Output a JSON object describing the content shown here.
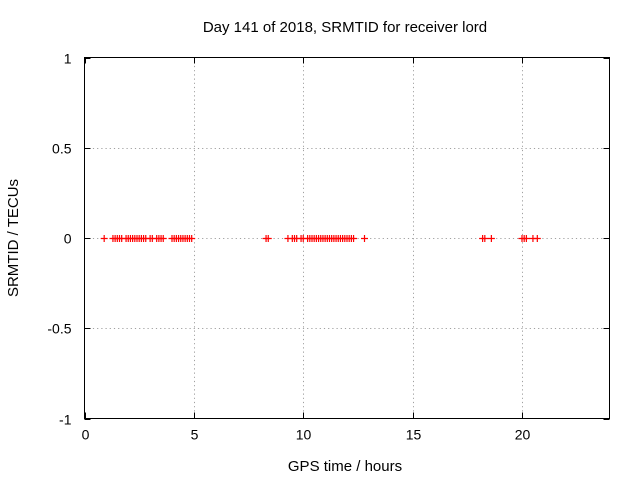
{
  "chart_data": {
    "type": "scatter",
    "title": "Day 141 of 2018, SRMTID for receiver lord",
    "xlabel": "GPS time / hours",
    "ylabel": "SRMTID / TECUs",
    "xlim": [
      0,
      24
    ],
    "ylim": [
      -1,
      1
    ],
    "xticks": [
      0,
      5,
      10,
      15,
      20
    ],
    "yticks": [
      -1,
      -0.5,
      0,
      0.5,
      1
    ],
    "xtick_labels": [
      "0",
      "5",
      "10",
      "15",
      "20"
    ],
    "ytick_labels": [
      "-1",
      "-0.5",
      "0",
      "0.5",
      "1"
    ],
    "grid": true,
    "marker": "plus",
    "series": [
      {
        "name": "SRMTID",
        "color": "#ff0000",
        "x": [
          0.9,
          1.3,
          1.4,
          1.5,
          1.6,
          1.7,
          1.9,
          2.0,
          2.1,
          2.2,
          2.3,
          2.4,
          2.5,
          2.6,
          2.7,
          2.8,
          3.0,
          3.1,
          3.3,
          3.4,
          3.5,
          3.6,
          4.0,
          4.1,
          4.2,
          4.3,
          4.4,
          4.5,
          4.6,
          4.7,
          4.8,
          4.9,
          8.3,
          8.4,
          9.3,
          9.5,
          9.6,
          9.7,
          9.9,
          10.0,
          10.2,
          10.3,
          10.4,
          10.5,
          10.6,
          10.7,
          10.8,
          10.9,
          11.0,
          11.1,
          11.2,
          11.3,
          11.4,
          11.5,
          11.6,
          11.7,
          11.8,
          11.9,
          12.0,
          12.1,
          12.2,
          12.3,
          12.8,
          18.2,
          18.3,
          18.6,
          20.0,
          20.1,
          20.2,
          20.5,
          20.7
        ],
        "y": [
          0,
          0,
          0,
          0,
          0,
          0,
          0,
          0,
          0,
          0,
          0,
          0,
          0,
          0,
          0,
          0,
          0,
          0,
          0,
          0,
          0,
          0,
          0,
          0,
          0,
          0,
          0,
          0,
          0,
          0,
          0,
          0,
          0,
          0,
          0,
          0,
          0,
          0,
          0,
          0,
          0,
          0,
          0,
          0,
          0,
          0,
          0,
          0,
          0,
          0,
          0,
          0,
          0,
          0,
          0,
          0,
          0,
          0,
          0,
          0,
          0,
          0,
          0,
          0,
          0,
          0,
          0,
          0,
          0,
          0,
          0
        ]
      }
    ]
  }
}
